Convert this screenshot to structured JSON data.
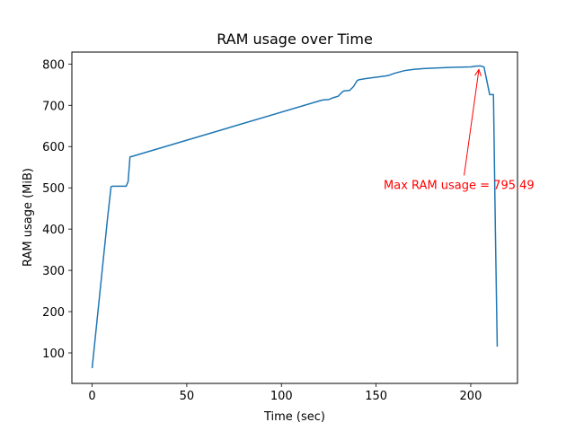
{
  "chart_data": {
    "type": "line",
    "title": "RAM usage over Time",
    "xlabel": "Time (sec)",
    "ylabel": "RAM usage (MiB)",
    "xlim": [
      -10.7,
      224.7
    ],
    "ylim": [
      26,
      829
    ],
    "x_ticks": [
      0,
      50,
      100,
      150,
      200
    ],
    "y_ticks": [
      100,
      200,
      300,
      400,
      500,
      600,
      700,
      800
    ],
    "grid": false,
    "legend": "none",
    "line_color": "#1f77b4",
    "series": [
      {
        "x": [
          0,
          8,
          10,
          11,
          18,
          19,
          20,
          21,
          121,
          122,
          125,
          127,
          130,
          132,
          133,
          136,
          138,
          140,
          141,
          145,
          150,
          155,
          157,
          160,
          165,
          168,
          170,
          175,
          180,
          190,
          200,
          203,
          205,
          207,
          210,
          212,
          213,
          214
        ],
        "y": [
          63,
          420,
          503,
          504,
          504,
          515,
          575,
          576,
          712,
          713,
          714,
          718,
          722,
          732,
          735,
          736,
          745,
          760,
          762,
          765,
          768,
          771,
          773,
          778,
          784,
          786,
          787,
          789,
          790,
          792,
          793,
          795,
          795.49,
          793,
          726,
          726,
          400,
          115
        ]
      }
    ],
    "annotation": {
      "text": "Max RAM usage = 795.49",
      "color": "#ff0000",
      "point": [
        204.3,
        795.49
      ],
      "text_anchor": [
        154,
        497
      ]
    }
  }
}
